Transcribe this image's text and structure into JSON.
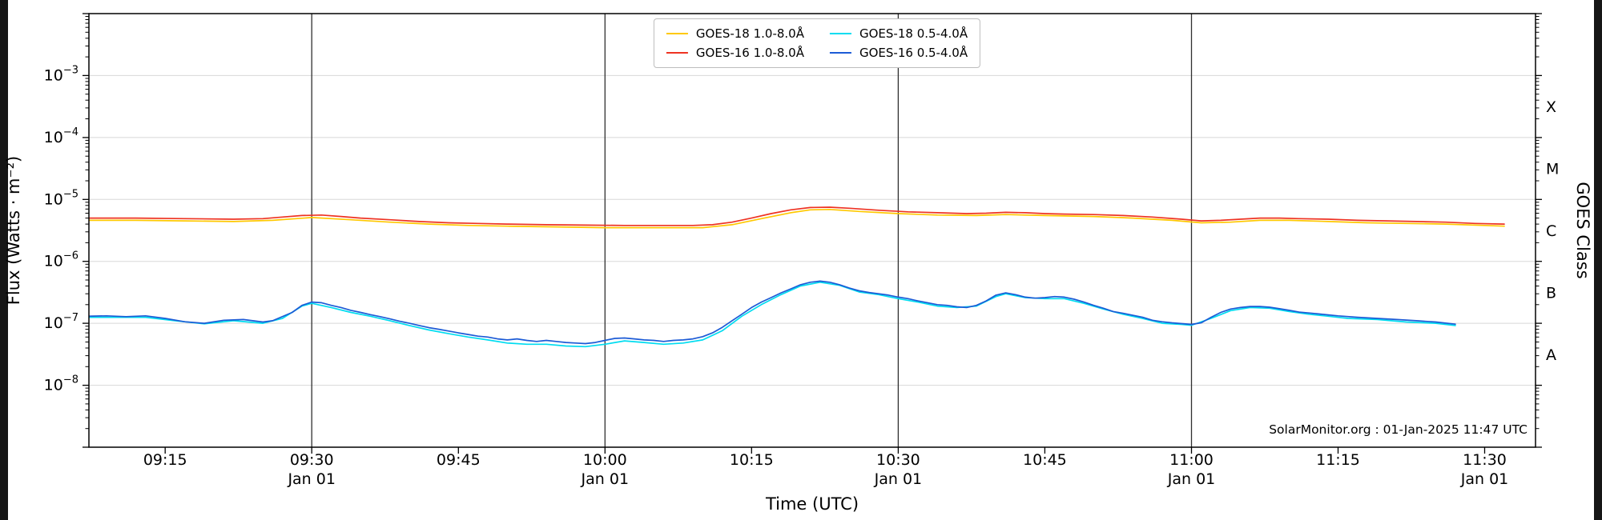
{
  "colors": {
    "letterbox": "#161616",
    "figure_bg": "#ffffff",
    "grid": "#d8d8d8",
    "vline": "#2f2f2f",
    "frame": "#000000"
  },
  "chart_data": {
    "type": "line",
    "title": "",
    "xlabel": "Time (UTC)",
    "ylabel": "Flux (Watts · m⁻²)",
    "ylabel_right": "GOES Class",
    "x_unit": "minutes after 09:00 UTC",
    "xlim": [
      7.2,
      155.2
    ],
    "ylim_exp": [
      -9,
      -2
    ],
    "yticks": [
      -3,
      -4,
      -5,
      -6,
      -7,
      -8
    ],
    "xticks": [
      {
        "t": 15,
        "label": "09:15"
      },
      {
        "t": 30,
        "label": "09:30",
        "sub": "Jan 01"
      },
      {
        "t": 45,
        "label": "09:45"
      },
      {
        "t": 60,
        "label": "10:00",
        "sub": "Jan 01"
      },
      {
        "t": 75,
        "label": "10:15"
      },
      {
        "t": 90,
        "label": "10:30",
        "sub": "Jan 01"
      },
      {
        "t": 105,
        "label": "10:45"
      },
      {
        "t": 120,
        "label": "11:00",
        "sub": "Jan 01"
      },
      {
        "t": 135,
        "label": "11:15"
      },
      {
        "t": 150,
        "label": "11:30",
        "sub": "Jan 01"
      }
    ],
    "grid": {
      "h_decades": [
        -3,
        -4,
        -5,
        -6,
        -7,
        -8
      ],
      "vlines_t": [
        30,
        60,
        90,
        120
      ]
    },
    "goes_classes": [
      {
        "label": "X",
        "flux": 0.000316
      },
      {
        "label": "M",
        "flux": 3.16e-05
      },
      {
        "label": "C",
        "flux": 3.16e-06
      },
      {
        "label": "B",
        "flux": 3.16e-07
      },
      {
        "label": "A",
        "flux": 3.16e-08
      }
    ],
    "legend_position": "top-center",
    "annotation": "SolarMonitor.org : 01-Jan-2025 11:47 UTC",
    "series": [
      {
        "name": "GOES-18 1.0-8.0Å",
        "color": "#ffc800",
        "points": [
          [
            7,
            4.6e-06
          ],
          [
            12,
            4.6e-06
          ],
          [
            17,
            4.5e-06
          ],
          [
            22,
            4.4e-06
          ],
          [
            26,
            4.6e-06
          ],
          [
            30,
            5.1e-06
          ],
          [
            34,
            4.7e-06
          ],
          [
            38,
            4.3e-06
          ],
          [
            42,
            4e-06
          ],
          [
            46,
            3.8e-06
          ],
          [
            50,
            3.7e-06
          ],
          [
            55,
            3.6e-06
          ],
          [
            60,
            3.5e-06
          ],
          [
            65,
            3.5e-06
          ],
          [
            70,
            3.5e-06
          ],
          [
            73,
            3.9e-06
          ],
          [
            76,
            4.9e-06
          ],
          [
            79,
            6.1e-06
          ],
          [
            81,
            6.8e-06
          ],
          [
            83,
            6.9e-06
          ],
          [
            86,
            6.4e-06
          ],
          [
            90,
            5.9e-06
          ],
          [
            94,
            5.6e-06
          ],
          [
            98,
            5.5e-06
          ],
          [
            101,
            5.7e-06
          ],
          [
            105,
            5.5e-06
          ],
          [
            110,
            5.3e-06
          ],
          [
            114,
            5e-06
          ],
          [
            118,
            4.6e-06
          ],
          [
            121,
            4.2e-06
          ],
          [
            124,
            4.3e-06
          ],
          [
            127,
            4.6e-06
          ],
          [
            130,
            4.6e-06
          ],
          [
            134,
            4.4e-06
          ],
          [
            138,
            4.2e-06
          ],
          [
            142,
            4.1e-06
          ],
          [
            146,
            4e-06
          ],
          [
            150,
            3.8e-06
          ],
          [
            152,
            3.7e-06
          ]
        ]
      },
      {
        "name": "GOES-16 1.0-8.0Å",
        "color": "#ee3322",
        "points": [
          [
            7,
            5e-06
          ],
          [
            12,
            5e-06
          ],
          [
            17,
            4.9e-06
          ],
          [
            22,
            4.8e-06
          ],
          [
            25,
            4.9e-06
          ],
          [
            27,
            5.2e-06
          ],
          [
            29,
            5.5e-06
          ],
          [
            31,
            5.6e-06
          ],
          [
            33,
            5.3e-06
          ],
          [
            35,
            5e-06
          ],
          [
            38,
            4.7e-06
          ],
          [
            41,
            4.4e-06
          ],
          [
            44,
            4.2e-06
          ],
          [
            47,
            4.1e-06
          ],
          [
            50,
            4e-06
          ],
          [
            54,
            3.9e-06
          ],
          [
            58,
            3.85e-06
          ],
          [
            62,
            3.8e-06
          ],
          [
            66,
            3.8e-06
          ],
          [
            69,
            3.8e-06
          ],
          [
            71,
            3.9e-06
          ],
          [
            73,
            4.3e-06
          ],
          [
            75,
            5e-06
          ],
          [
            77,
            5.9e-06
          ],
          [
            79,
            6.8e-06
          ],
          [
            81,
            7.4e-06
          ],
          [
            83,
            7.5e-06
          ],
          [
            85,
            7.2e-06
          ],
          [
            88,
            6.7e-06
          ],
          [
            91,
            6.3e-06
          ],
          [
            94,
            6.1e-06
          ],
          [
            97,
            5.9e-06
          ],
          [
            99,
            6e-06
          ],
          [
            101,
            6.2e-06
          ],
          [
            103,
            6.1e-06
          ],
          [
            105,
            5.9e-06
          ],
          [
            107,
            5.8e-06
          ],
          [
            110,
            5.7e-06
          ],
          [
            113,
            5.5e-06
          ],
          [
            116,
            5.2e-06
          ],
          [
            119,
            4.8e-06
          ],
          [
            121,
            4.5e-06
          ],
          [
            123,
            4.6e-06
          ],
          [
            125,
            4.8e-06
          ],
          [
            127,
            5e-06
          ],
          [
            129,
            5e-06
          ],
          [
            131,
            4.9e-06
          ],
          [
            134,
            4.8e-06
          ],
          [
            137,
            4.6e-06
          ],
          [
            140,
            4.5e-06
          ],
          [
            143,
            4.4e-06
          ],
          [
            146,
            4.3e-06
          ],
          [
            149,
            4.1e-06
          ],
          [
            152,
            4e-06
          ]
        ]
      },
      {
        "name": "GOES-18 0.5-4.0Å",
        "color": "#00dcf0",
        "points": [
          [
            7,
            1.25e-07
          ],
          [
            10,
            1.25e-07
          ],
          [
            13,
            1.25e-07
          ],
          [
            16,
            1.1e-07
          ],
          [
            19,
            9.8e-08
          ],
          [
            22,
            1.1e-07
          ],
          [
            25,
            1e-07
          ],
          [
            27,
            1.2e-07
          ],
          [
            29,
            1.9e-07
          ],
          [
            30,
            2.1e-07
          ],
          [
            32,
            1.8e-07
          ],
          [
            34,
            1.5e-07
          ],
          [
            36,
            1.3e-07
          ],
          [
            38,
            1.1e-07
          ],
          [
            40,
            9.2e-08
          ],
          [
            42,
            7.8e-08
          ],
          [
            44,
            6.8e-08
          ],
          [
            46,
            6e-08
          ],
          [
            48,
            5.4e-08
          ],
          [
            50,
            4.8e-08
          ],
          [
            52,
            4.6e-08
          ],
          [
            54,
            4.6e-08
          ],
          [
            56,
            4.3e-08
          ],
          [
            58,
            4.2e-08
          ],
          [
            60,
            4.6e-08
          ],
          [
            62,
            5.2e-08
          ],
          [
            64,
            4.9e-08
          ],
          [
            66,
            4.6e-08
          ],
          [
            68,
            4.8e-08
          ],
          [
            70,
            5.4e-08
          ],
          [
            72,
            7.6e-08
          ],
          [
            74,
            1.3e-07
          ],
          [
            76,
            2e-07
          ],
          [
            78,
            2.9e-07
          ],
          [
            80,
            4e-07
          ],
          [
            82,
            4.6e-07
          ],
          [
            84,
            4.1e-07
          ],
          [
            86,
            3.2e-07
          ],
          [
            88,
            2.9e-07
          ],
          [
            90,
            2.5e-07
          ],
          [
            92,
            2.2e-07
          ],
          [
            94,
            1.9e-07
          ],
          [
            96,
            1.8e-07
          ],
          [
            98,
            1.9e-07
          ],
          [
            100,
            2.7e-07
          ],
          [
            101,
            3e-07
          ],
          [
            103,
            2.6e-07
          ],
          [
            105,
            2.5e-07
          ],
          [
            107,
            2.5e-07
          ],
          [
            109,
            2.1e-07
          ],
          [
            111,
            1.7e-07
          ],
          [
            113,
            1.4e-07
          ],
          [
            115,
            1.2e-07
          ],
          [
            117,
            1e-07
          ],
          [
            119,
            9.6e-08
          ],
          [
            120,
            9.3e-08
          ],
          [
            122,
            1.2e-07
          ],
          [
            124,
            1.6e-07
          ],
          [
            126,
            1.8e-07
          ],
          [
            128,
            1.75e-07
          ],
          [
            130,
            1.55e-07
          ],
          [
            132,
            1.4e-07
          ],
          [
            134,
            1.3e-07
          ],
          [
            136,
            1.2e-07
          ],
          [
            139,
            1.15e-07
          ],
          [
            142,
            1.05e-07
          ],
          [
            145,
            1e-07
          ],
          [
            147,
            9.2e-08
          ]
        ]
      },
      {
        "name": "GOES-16 0.5-4.0Å",
        "color": "#1c5bd6",
        "points": [
          [
            7,
            1.3e-07
          ],
          [
            9,
            1.32e-07
          ],
          [
            11,
            1.28e-07
          ],
          [
            13,
            1.32e-07
          ],
          [
            15,
            1.2e-07
          ],
          [
            17,
            1.06e-07
          ],
          [
            19,
            1e-07
          ],
          [
            21,
            1.12e-07
          ],
          [
            23,
            1.15e-07
          ],
          [
            25,
            1.05e-07
          ],
          [
            26,
            1.1e-07
          ],
          [
            28,
            1.5e-07
          ],
          [
            29,
            1.95e-07
          ],
          [
            30,
            2.2e-07
          ],
          [
            31,
            2.15e-07
          ],
          [
            32,
            1.95e-07
          ],
          [
            33,
            1.8e-07
          ],
          [
            34,
            1.62e-07
          ],
          [
            35,
            1.5e-07
          ],
          [
            36,
            1.38e-07
          ],
          [
            37,
            1.28e-07
          ],
          [
            38,
            1.18e-07
          ],
          [
            39,
            1.08e-07
          ],
          [
            40,
            1e-07
          ],
          [
            41,
            9.2e-08
          ],
          [
            42,
            8.5e-08
          ],
          [
            43,
            8e-08
          ],
          [
            44,
            7.5e-08
          ],
          [
            45,
            7e-08
          ],
          [
            46,
            6.6e-08
          ],
          [
            47,
            6.2e-08
          ],
          [
            48,
            6e-08
          ],
          [
            49,
            5.6e-08
          ],
          [
            50,
            5.4e-08
          ],
          [
            51,
            5.6e-08
          ],
          [
            52,
            5.3e-08
          ],
          [
            53,
            5.1e-08
          ],
          [
            54,
            5.3e-08
          ],
          [
            55,
            5.1e-08
          ],
          [
            56,
            4.9e-08
          ],
          [
            57,
            4.8e-08
          ],
          [
            58,
            4.7e-08
          ],
          [
            59,
            4.9e-08
          ],
          [
            60,
            5.3e-08
          ],
          [
            61,
            5.7e-08
          ],
          [
            62,
            5.8e-08
          ],
          [
            63,
            5.6e-08
          ],
          [
            64,
            5.4e-08
          ],
          [
            65,
            5.3e-08
          ],
          [
            66,
            5.1e-08
          ],
          [
            67,
            5.3e-08
          ],
          [
            68,
            5.4e-08
          ],
          [
            69,
            5.6e-08
          ],
          [
            70,
            6.1e-08
          ],
          [
            71,
            7e-08
          ],
          [
            72,
            8.6e-08
          ],
          [
            73,
            1.1e-07
          ],
          [
            74,
            1.4e-07
          ],
          [
            75,
            1.8e-07
          ],
          [
            76,
            2.2e-07
          ],
          [
            77,
            2.6e-07
          ],
          [
            78,
            3.1e-07
          ],
          [
            79,
            3.6e-07
          ],
          [
            80,
            4.2e-07
          ],
          [
            81,
            4.6e-07
          ],
          [
            82,
            4.8e-07
          ],
          [
            83,
            4.6e-07
          ],
          [
            84,
            4.2e-07
          ],
          [
            85,
            3.7e-07
          ],
          [
            86,
            3.35e-07
          ],
          [
            87,
            3.15e-07
          ],
          [
            88,
            3e-07
          ],
          [
            89,
            2.85e-07
          ],
          [
            90,
            2.65e-07
          ],
          [
            91,
            2.5e-07
          ],
          [
            92,
            2.3e-07
          ],
          [
            93,
            2.15e-07
          ],
          [
            94,
            2e-07
          ],
          [
            95,
            1.95e-07
          ],
          [
            96,
            1.85e-07
          ],
          [
            97,
            1.8e-07
          ],
          [
            98,
            1.95e-07
          ],
          [
            99,
            2.3e-07
          ],
          [
            100,
            2.85e-07
          ],
          [
            101,
            3.1e-07
          ],
          [
            102,
            2.9e-07
          ],
          [
            103,
            2.65e-07
          ],
          [
            104,
            2.55e-07
          ],
          [
            105,
            2.6e-07
          ],
          [
            106,
            2.7e-07
          ],
          [
            107,
            2.65e-07
          ],
          [
            108,
            2.45e-07
          ],
          [
            109,
            2.2e-07
          ],
          [
            110,
            1.95e-07
          ],
          [
            111,
            1.75e-07
          ],
          [
            112,
            1.55e-07
          ],
          [
            113,
            1.45e-07
          ],
          [
            114,
            1.35e-07
          ],
          [
            115,
            1.25e-07
          ],
          [
            116,
            1.12e-07
          ],
          [
            117,
            1.06e-07
          ],
          [
            118,
            1.02e-07
          ],
          [
            119,
            9.9e-08
          ],
          [
            120,
            9.6e-08
          ],
          [
            121,
            1.02e-07
          ],
          [
            122,
            1.25e-07
          ],
          [
            123,
            1.5e-07
          ],
          [
            124,
            1.7e-07
          ],
          [
            125,
            1.8e-07
          ],
          [
            126,
            1.87e-07
          ],
          [
            127,
            1.87e-07
          ],
          [
            128,
            1.82e-07
          ],
          [
            129,
            1.72e-07
          ],
          [
            130,
            1.62e-07
          ],
          [
            131,
            1.52e-07
          ],
          [
            132,
            1.47e-07
          ],
          [
            133,
            1.42e-07
          ],
          [
            134,
            1.37e-07
          ],
          [
            135,
            1.32e-07
          ],
          [
            137,
            1.25e-07
          ],
          [
            139,
            1.2e-07
          ],
          [
            141,
            1.15e-07
          ],
          [
            143,
            1.1e-07
          ],
          [
            145,
            1.05e-07
          ],
          [
            147,
            9.7e-08
          ]
        ]
      }
    ]
  }
}
